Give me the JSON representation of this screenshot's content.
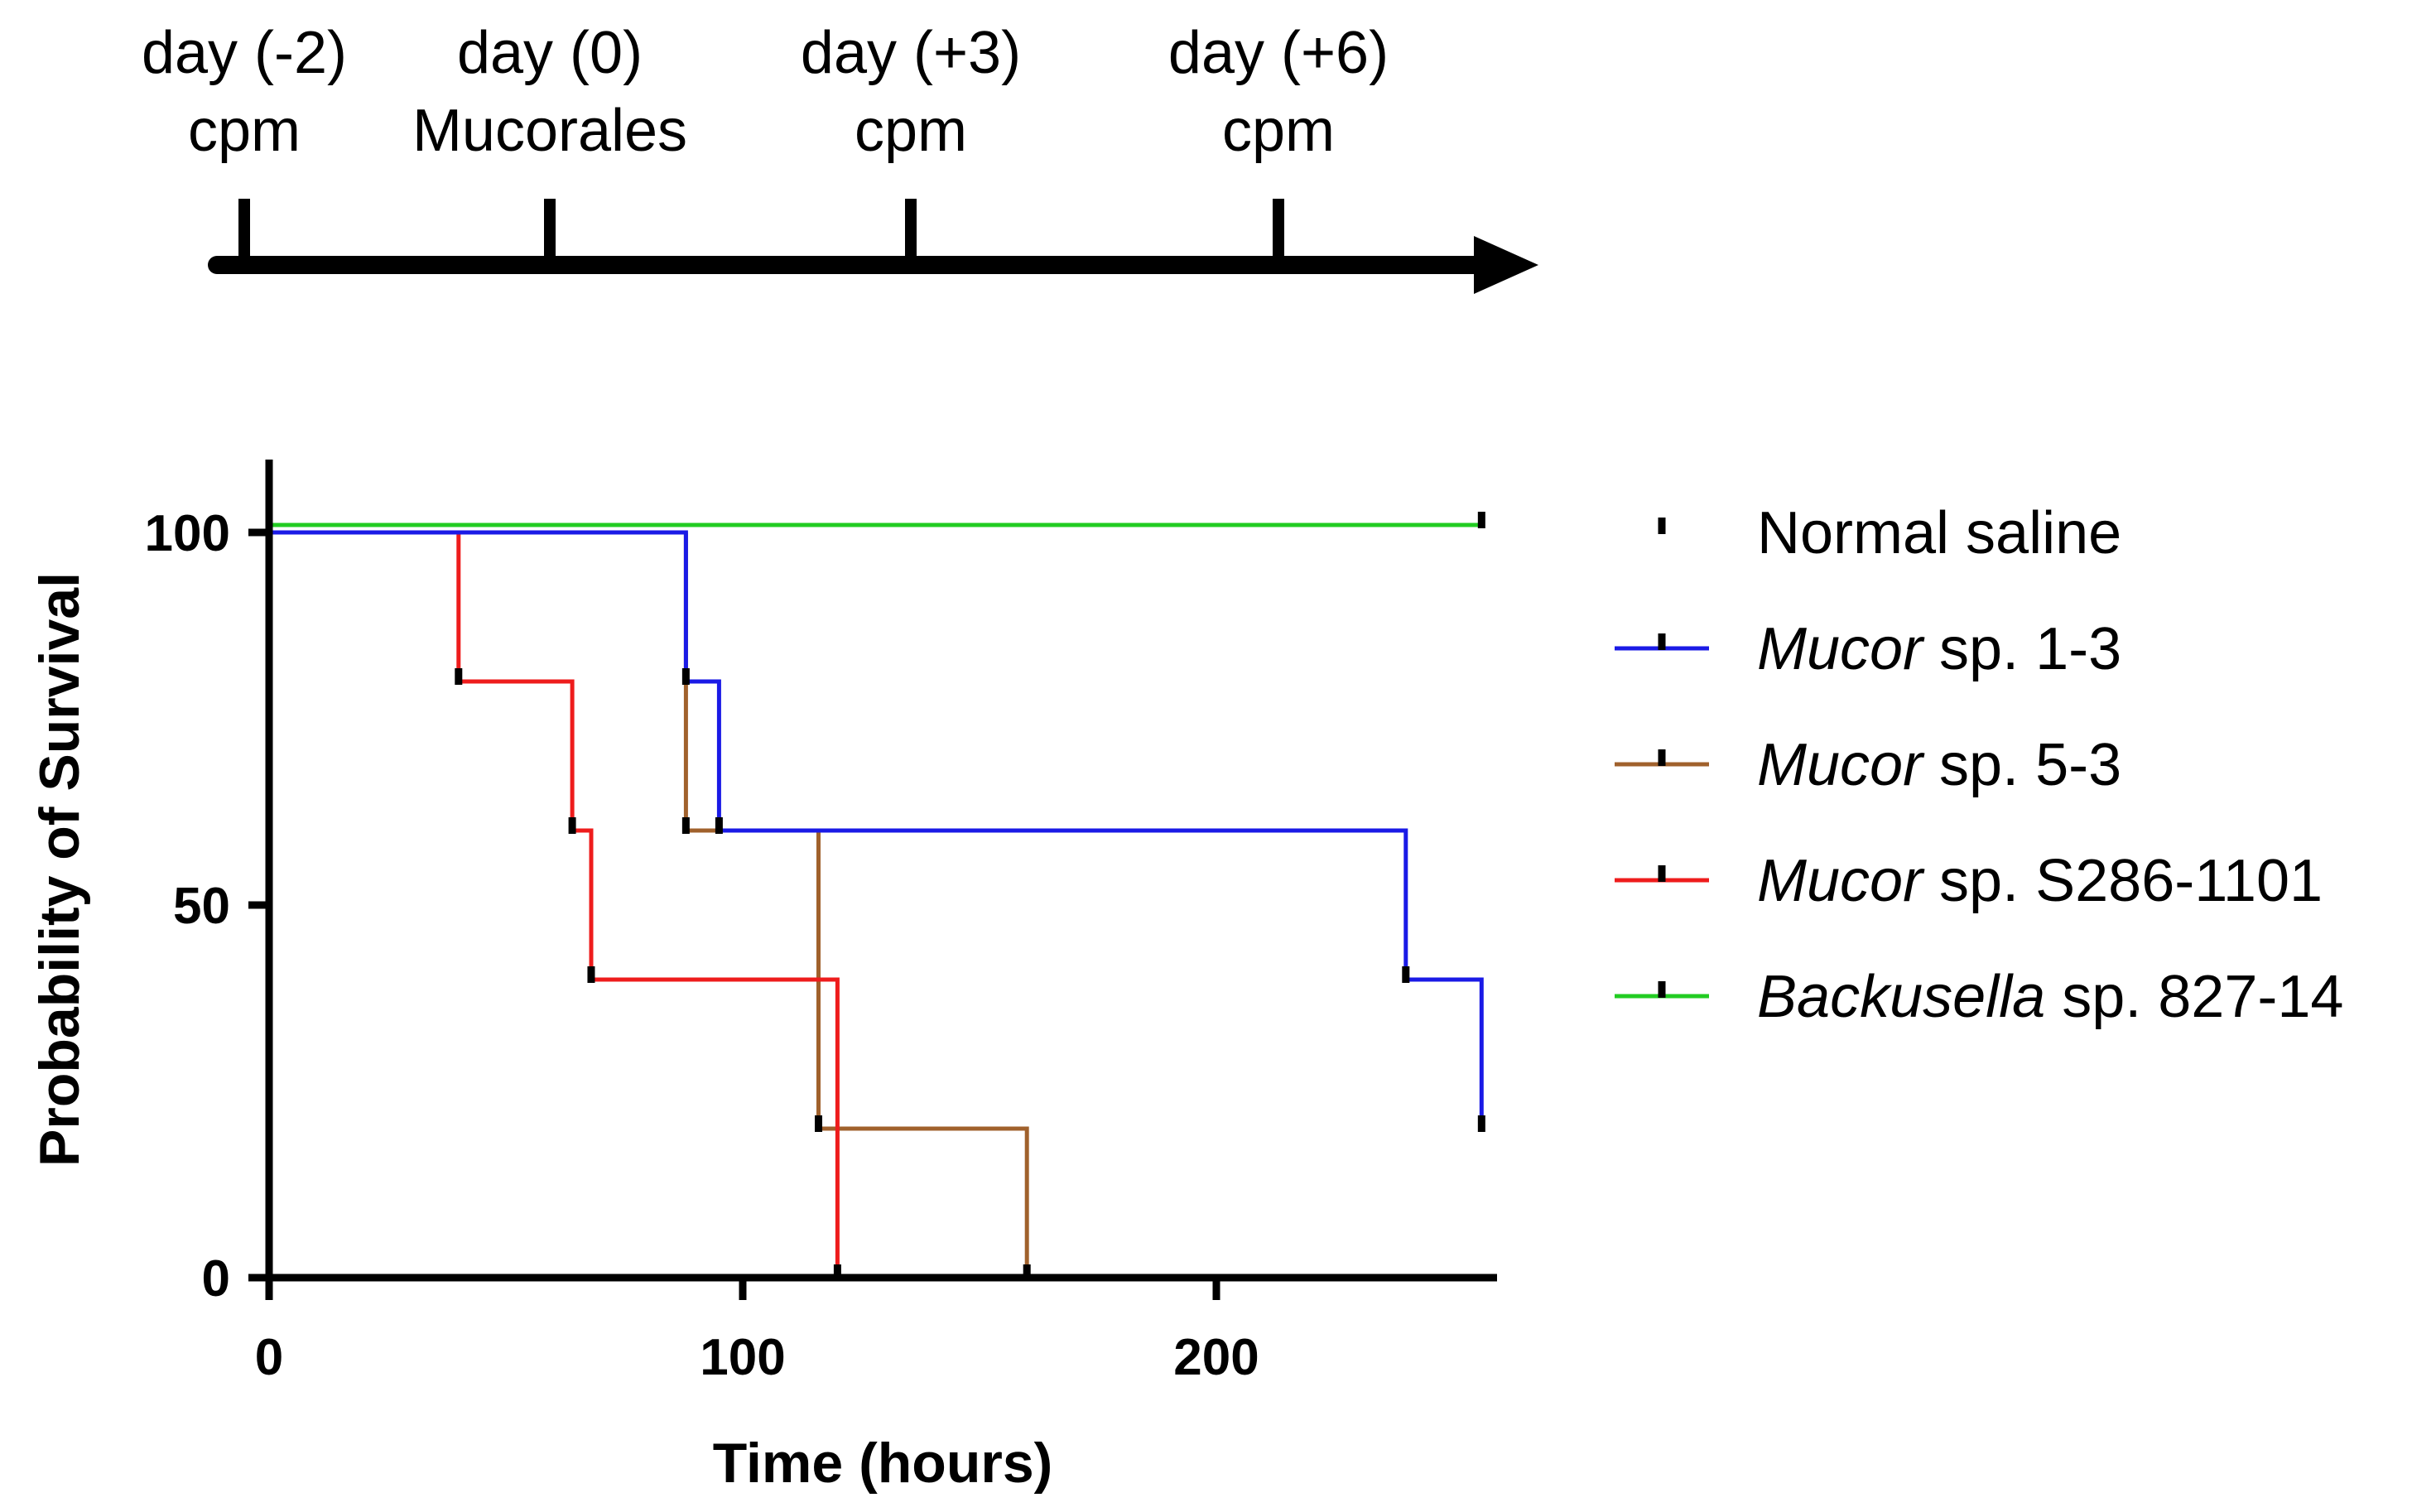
{
  "timeline": {
    "events": [
      {
        "day": "day (-2)",
        "label": "cpm"
      },
      {
        "day": "day (0)",
        "label": "Mucorales"
      },
      {
        "day": "day (+3)",
        "label": "cpm"
      },
      {
        "day": "day (+6)",
        "label": "cpm"
      }
    ]
  },
  "chart_data": {
    "type": "line",
    "subtype": "kaplan-meier survival (step)",
    "title": "",
    "xlabel": "Time (hours)",
    "ylabel": "Probability of Survival",
    "xlim": [
      0,
      259
    ],
    "ylim": [
      0,
      110
    ],
    "xticks": [
      0,
      100,
      200
    ],
    "yticks": [
      0,
      50,
      100
    ],
    "legend_position": "right",
    "series": [
      {
        "name": "Normal saline",
        "name_italic": "",
        "name_rest": "Normal saline",
        "color": "#000000",
        "steps": [],
        "censored": []
      },
      {
        "name": "Mucor sp. 1-3",
        "name_italic": "Mucor",
        "name_rest": " sp. 1-3",
        "color": "#1a1ae6",
        "steps": [
          [
            0,
            100
          ],
          [
            88,
            100
          ],
          [
            88,
            80
          ],
          [
            95,
            80
          ],
          [
            95,
            60
          ],
          [
            240,
            60
          ],
          [
            240,
            40
          ],
          [
            256,
            40
          ],
          [
            256,
            20
          ]
        ],
        "censored": [
          [
            88,
            80
          ],
          [
            95,
            60
          ],
          [
            240,
            40
          ],
          [
            256,
            20
          ]
        ]
      },
      {
        "name": "Mucor sp. 5-3",
        "name_italic": "Mucor",
        "name_rest": " sp. 5-3",
        "color": "#a0612c",
        "steps": [
          [
            88,
            100
          ],
          [
            88,
            60
          ],
          [
            116,
            60
          ],
          [
            116,
            20
          ],
          [
            160,
            20
          ],
          [
            160,
            0
          ]
        ],
        "censored": [
          [
            88,
            60
          ],
          [
            116,
            20
          ],
          [
            160,
            0
          ]
        ]
      },
      {
        "name": "Mucor sp. S286-1101",
        "name_italic": "Mucor",
        "name_rest": " sp. S286-1101",
        "color": "#ee1c1c",
        "steps": [
          [
            40,
            100
          ],
          [
            40,
            80
          ],
          [
            64,
            80
          ],
          [
            64,
            60
          ],
          [
            68,
            60
          ],
          [
            68,
            40
          ],
          [
            116,
            40
          ],
          [
            120,
            40
          ],
          [
            120,
            20
          ],
          [
            120,
            0
          ]
        ],
        "censored": [
          [
            40,
            80
          ],
          [
            64,
            60
          ],
          [
            68,
            40
          ],
          [
            120,
            0
          ]
        ]
      },
      {
        "name": "Backusella sp. 827-14",
        "name_italic": "Backusella",
        "name_rest": " sp. 827-14",
        "color": "#22cc22",
        "steps": [
          [
            0,
            101
          ],
          [
            256,
            101
          ]
        ],
        "censored": [
          [
            256,
            101
          ]
        ]
      }
    ]
  }
}
